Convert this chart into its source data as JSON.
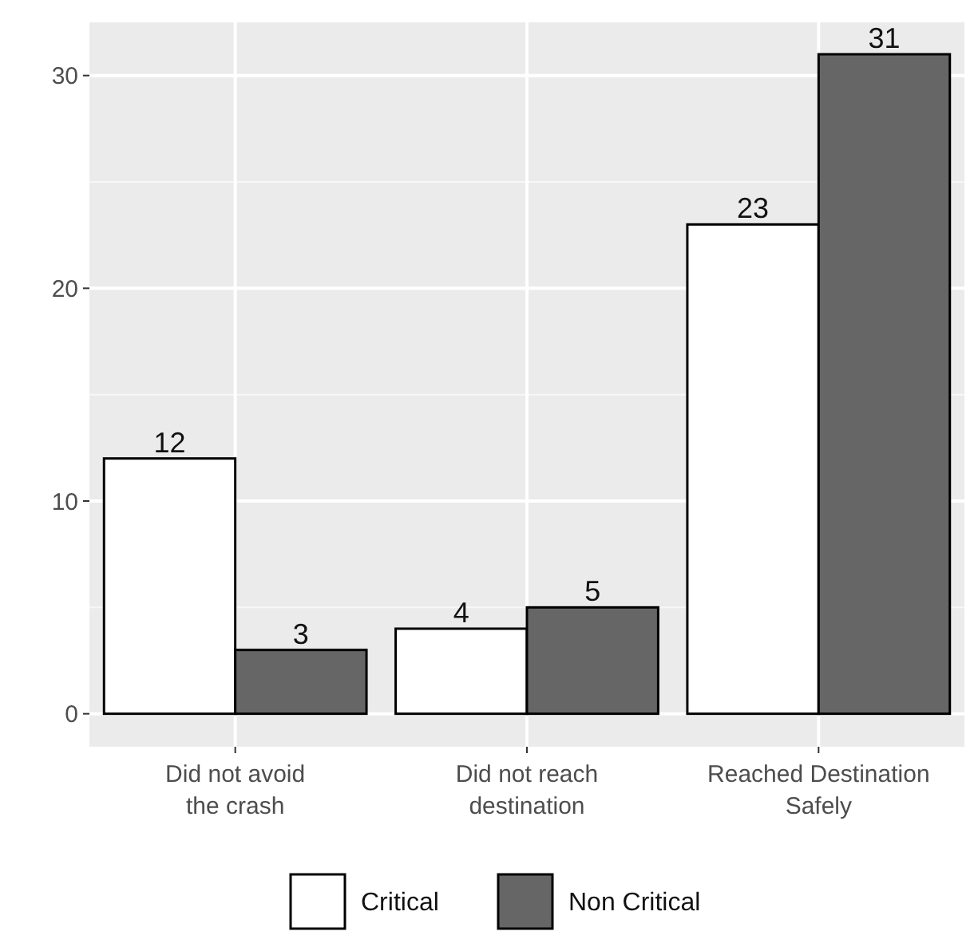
{
  "chart_data": {
    "type": "bar",
    "categories": [
      "Did not avoid\nthe crash",
      "Did not reach\ndestination",
      "Reached Destination\nSafely"
    ],
    "series": [
      {
        "name": "Critical",
        "color": "#ffffff",
        "values": [
          12,
          4,
          23
        ]
      },
      {
        "name": "Non Critical",
        "color": "#666666",
        "values": [
          3,
          5,
          31
        ]
      }
    ],
    "ylim": [
      -1.55,
      32.5
    ],
    "yticks": [
      0,
      10,
      20,
      30
    ],
    "grid": true,
    "legend": "bottom",
    "data_labels": true
  }
}
